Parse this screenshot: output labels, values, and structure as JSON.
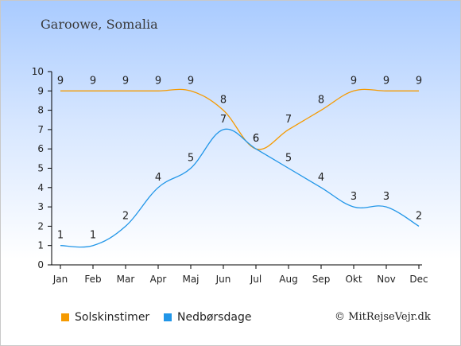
{
  "header": {
    "title": "Garoowe, Somalia"
  },
  "credit": "© MitRejseVejr.dk",
  "colors": {
    "sun": "#f59a00",
    "rain": "#2196e8",
    "axis": "#000000"
  },
  "chart_data": {
    "type": "line",
    "categories": [
      "Jan",
      "Feb",
      "Mar",
      "Apr",
      "Maj",
      "Jun",
      "Jul",
      "Aug",
      "Sep",
      "Okt",
      "Nov",
      "Dec"
    ],
    "ylim": [
      0,
      10
    ],
    "yticks": [
      0,
      1,
      2,
      3,
      4,
      5,
      6,
      7,
      8,
      9,
      10
    ],
    "grid": false,
    "legend_placement": "bottom-left",
    "series": [
      {
        "name": "Solskinstimer",
        "color": "#f59a00",
        "values": [
          9,
          9,
          9,
          9,
          9,
          8,
          6,
          7,
          8,
          9,
          9,
          9
        ]
      },
      {
        "name": "Nedbørsdage",
        "color": "#2196e8",
        "values": [
          1,
          1,
          2,
          4,
          5,
          7,
          6,
          5,
          4,
          3,
          3,
          2
        ]
      }
    ]
  }
}
